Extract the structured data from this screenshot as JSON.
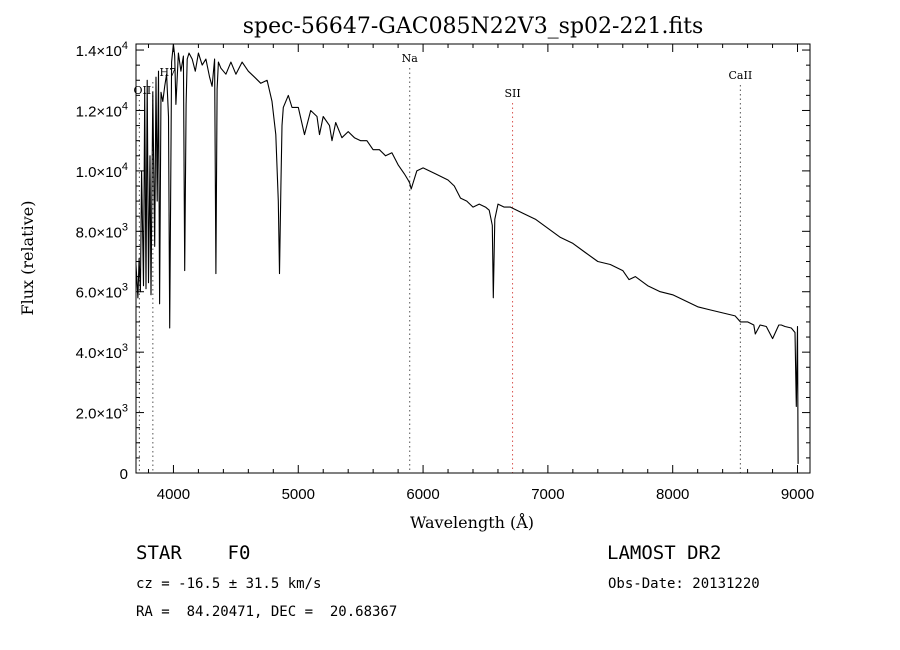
{
  "chart_data": {
    "type": "line",
    "title": "spec-56647-GAC085N22V3_sp02-221.fits",
    "xlabel": "Wavelength (Å)",
    "ylabel": "Flux (relative)",
    "xlim": [
      3700,
      9100
    ],
    "ylim": [
      0,
      14200
    ],
    "xticks": [
      4000,
      5000,
      6000,
      7000,
      8000,
      9000
    ],
    "xtick_labels": [
      "4000",
      "5000",
      "6000",
      "7000",
      "8000",
      "9000"
    ],
    "yticks": [
      {
        "value": 0,
        "mant": "0",
        "exp": ""
      },
      {
        "value": 2000,
        "mant": "2.0×10",
        "exp": "3"
      },
      {
        "value": 4000,
        "mant": "4.0×10",
        "exp": "3"
      },
      {
        "value": 6000,
        "mant": "6.0×10",
        "exp": "3"
      },
      {
        "value": 8000,
        "mant": "8.0×10",
        "exp": "3"
      },
      {
        "value": 10000,
        "mant": "1.0×10",
        "exp": "4"
      },
      {
        "value": 12000,
        "mant": "1.2×10",
        "exp": "4"
      },
      {
        "value": 14000,
        "mant": "1.4×10",
        "exp": "4"
      }
    ],
    "spectral_lines": [
      {
        "name": "OII",
        "wavelength": 3727,
        "color": "#000000"
      },
      {
        "name": "H7",
        "wavelength": 3835,
        "color": "#000000"
      },
      {
        "name": "Na",
        "wavelength": 5893,
        "color": "#000000"
      },
      {
        "name": "SII",
        "wavelength": 6717,
        "color": "#d9534f"
      },
      {
        "name": "CaII",
        "wavelength": 8542,
        "color": "#000000"
      }
    ],
    "series": [
      {
        "color": "#000000",
        "x": [
          3700,
          3715,
          3725,
          3735,
          3745,
          3760,
          3770,
          3780,
          3790,
          3800,
          3812,
          3820,
          3835,
          3850,
          3860,
          3870,
          3880,
          3889,
          3900,
          3915,
          3930,
          3945,
          3960,
          3970,
          3985,
          4000,
          4010,
          4020,
          4040,
          4060,
          4080,
          4090,
          4101,
          4110,
          4125,
          4150,
          4175,
          4200,
          4230,
          4260,
          4290,
          4310,
          4330,
          4340,
          4350,
          4360,
          4380,
          4420,
          4460,
          4500,
          4550,
          4600,
          4650,
          4700,
          4750,
          4790,
          4820,
          4840,
          4850,
          4861,
          4870,
          4880,
          4900,
          4920,
          4950,
          5000,
          5050,
          5100,
          5150,
          5170,
          5200,
          5250,
          5270,
          5300,
          5350,
          5400,
          5450,
          5500,
          5550,
          5600,
          5650,
          5700,
          5750,
          5800,
          5850,
          5880,
          5893,
          5905,
          5950,
          6000,
          6100,
          6200,
          6250,
          6300,
          6350,
          6400,
          6450,
          6500,
          6530,
          6555,
          6563,
          6575,
          6600,
          6650,
          6700,
          6800,
          6900,
          7000,
          7100,
          7200,
          7300,
          7400,
          7500,
          7600,
          7650,
          7700,
          7800,
          7900,
          8000,
          8100,
          8200,
          8300,
          8400,
          8500,
          8542,
          8600,
          8650,
          8662,
          8700,
          8750,
          8800,
          8850,
          8870,
          8900,
          8950,
          8980,
          8990,
          9000,
          9005
        ],
        "y": [
          6900,
          5800,
          7100,
          6000,
          10000,
          6200,
          12600,
          6100,
          13000,
          6300,
          10500,
          5900,
          12600,
          7500,
          13100,
          9000,
          13300,
          5600,
          12600,
          12300,
          12800,
          13200,
          11800,
          4800,
          13600,
          14300,
          13800,
          12200,
          13900,
          13300,
          13800,
          6700,
          12200,
          13700,
          13900,
          13700,
          13300,
          13900,
          13500,
          13700,
          13100,
          12800,
          13700,
          6600,
          12700,
          13600,
          13400,
          13200,
          13600,
          13200,
          13600,
          13300,
          13100,
          12900,
          13000,
          12300,
          11200,
          9000,
          6600,
          9500,
          11500,
          12100,
          12300,
          12500,
          12100,
          12100,
          11200,
          12000,
          11800,
          11200,
          11800,
          11500,
          11000,
          11600,
          11100,
          11300,
          11100,
          11000,
          11000,
          10700,
          10700,
          10500,
          10600,
          10200,
          9900,
          9700,
          9600,
          9400,
          10000,
          10100,
          9900,
          9700,
          9500,
          9100,
          9000,
          8800,
          8900,
          8800,
          8700,
          8200,
          5800,
          8400,
          8900,
          8800,
          8800,
          8600,
          8400,
          8100,
          7800,
          7600,
          7300,
          7000,
          6900,
          6700,
          6400,
          6500,
          6200,
          6000,
          5900,
          5700,
          5500,
          5400,
          5300,
          5200,
          5000,
          5000,
          4900,
          4600,
          4900,
          4850,
          4450,
          4900,
          4900,
          4850,
          4800,
          4650,
          2200,
          4850,
          300
        ]
      }
    ]
  },
  "info": {
    "object": "STAR    F0",
    "cz": "cz = -16.5 ± 31.5 km/s",
    "radec": "RA =  84.20471, DEC =  20.68367",
    "survey": "LAMOST DR2",
    "obsdate": "Obs-Date: 20131220"
  }
}
